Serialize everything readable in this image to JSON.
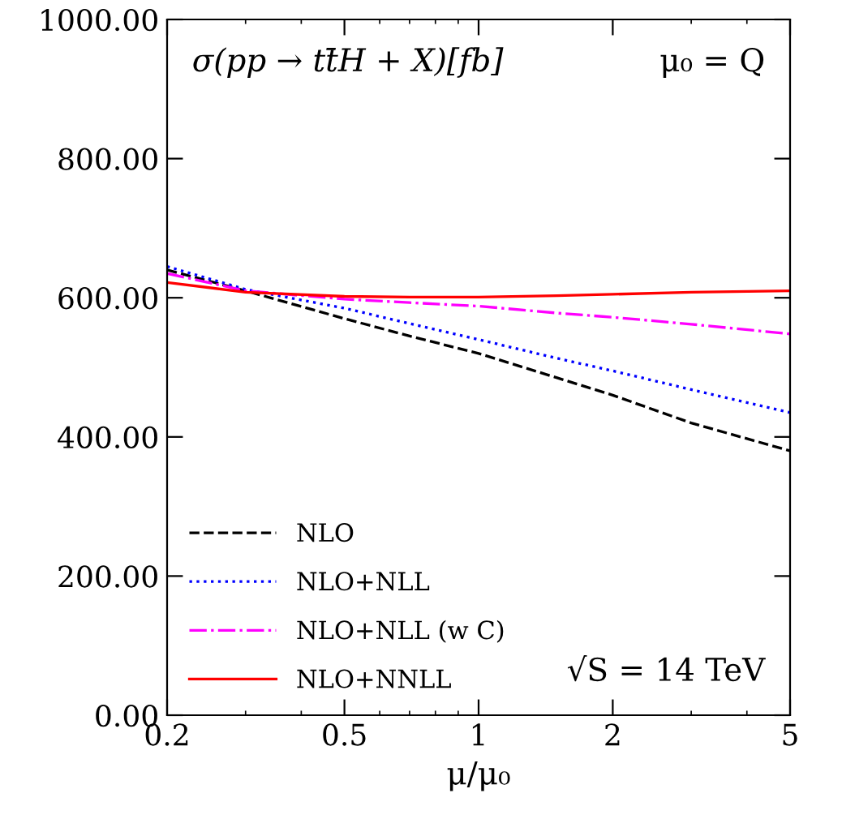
{
  "chart_data": {
    "type": "line",
    "title": "σ(pp → tt̄H + X)[fb]",
    "xlabel": "μ/μ₀",
    "log": "x",
    "annotations": [
      "μ₀ = Q",
      "√S = 14 TeV"
    ],
    "x": [
      0.2,
      0.3,
      0.5,
      0.7,
      1,
      1.5,
      2,
      3,
      5
    ],
    "series": [
      {
        "name": "NLO",
        "color": "#000000",
        "line_style": "dashed",
        "values": [
          640,
          610,
          570,
          545,
          520,
          485,
          460,
          420,
          380
        ]
      },
      {
        "name": "NLO+NLL",
        "color": "#0000ff",
        "line_style": "dotted",
        "values": [
          645,
          612,
          585,
          563,
          540,
          513,
          495,
          468,
          435
        ]
      },
      {
        "name": "NLO+NLL (w C)",
        "color": "#ff00ff",
        "line_style": "dashdot",
        "values": [
          635,
          610,
          598,
          593,
          588,
          578,
          572,
          562,
          548
        ]
      },
      {
        "name": "NLO+NNLL",
        "color": "#ff0000",
        "line_style": "solid",
        "values": [
          622,
          608,
          602,
          601,
          601,
          603,
          605,
          608,
          610
        ]
      }
    ],
    "xlim": [
      0.2,
      5
    ],
    "xticks": [
      0.2,
      0.5,
      1,
      2,
      5
    ],
    "ylim": [
      0,
      1000
    ],
    "yticks": [
      {
        "value": 0,
        "label": "0.00"
      },
      {
        "value": 200,
        "label": "200.00"
      },
      {
        "value": 400,
        "label": "400.00"
      },
      {
        "value": 600,
        "label": "600.00"
      },
      {
        "value": 800,
        "label": "800.00"
      },
      {
        "value": 1000,
        "label": "1000.00"
      }
    ],
    "grid": false,
    "legend": "bottom left"
  }
}
